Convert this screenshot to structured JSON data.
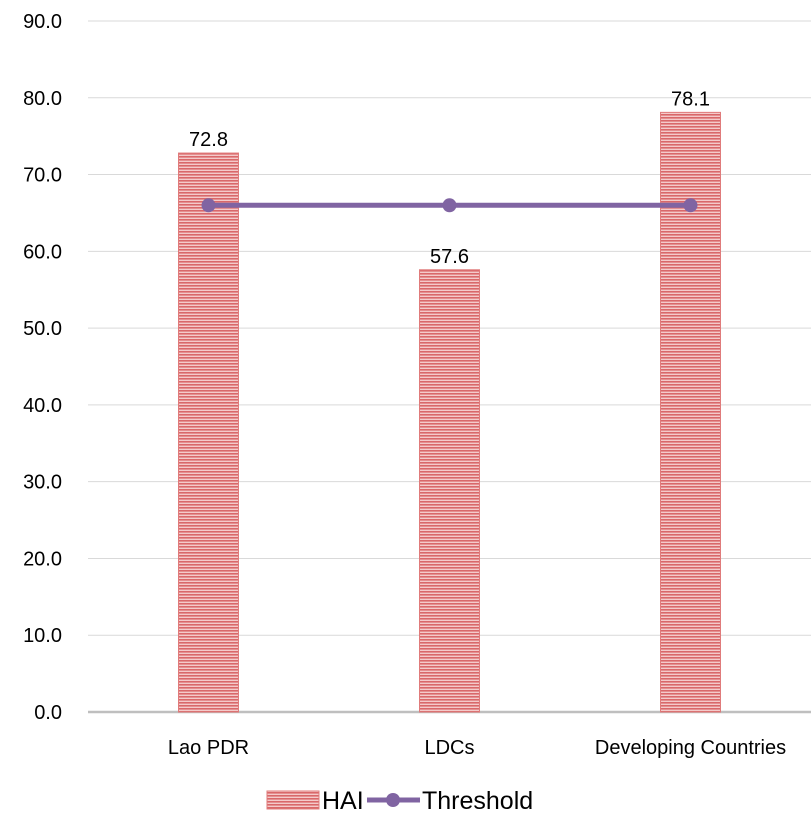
{
  "chart_data": {
    "type": "bar",
    "categories": [
      "Lao PDR",
      "LDCs",
      "Developing Countries"
    ],
    "series": [
      {
        "name": "HAI",
        "type": "bar",
        "values": [
          72.8,
          57.6,
          78.1
        ],
        "color": "#e07b7b",
        "pattern": "horizontal-stripes"
      },
      {
        "name": "Threshold",
        "type": "line",
        "values": [
          66,
          66,
          66
        ],
        "color": "#8064a2",
        "marker": "circle"
      }
    ],
    "data_labels": [
      "72.8",
      "57.6",
      "78.1"
    ],
    "yticks": [
      "0.0",
      "10.0",
      "20.0",
      "30.0",
      "40.0",
      "50.0",
      "60.0",
      "70.0",
      "80.0",
      "90.0"
    ],
    "ylim": [
      0,
      90
    ],
    "grid": true,
    "legend_position": "bottom"
  }
}
